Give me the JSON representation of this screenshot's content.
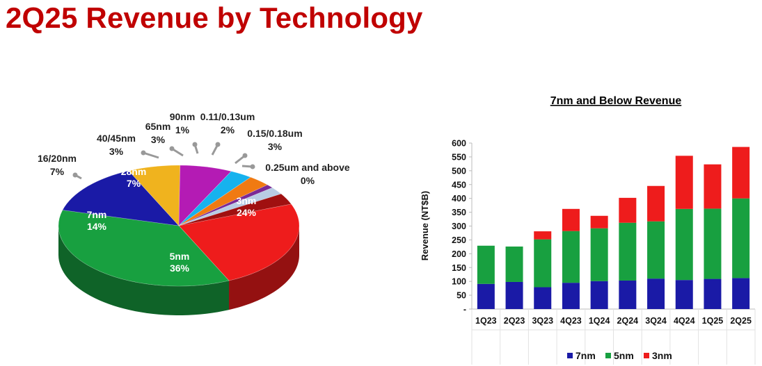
{
  "title": "2Q25 Revenue by Technology",
  "colors": {
    "title": "#c00000",
    "7nm": "#1a1aa6",
    "5nm": "#18a040",
    "3nm": "#ee1c1c"
  },
  "chart_data": [
    {
      "type": "pie",
      "slices": [
        {
          "label": "3nm",
          "value": 24,
          "value_label": "24%",
          "color": "#ee1c1c",
          "label_inside": true
        },
        {
          "label": "5nm",
          "value": 36,
          "value_label": "36%",
          "color": "#18a040",
          "label_inside": true
        },
        {
          "label": "7nm",
          "value": 14,
          "value_label": "14%",
          "color": "#1a1aa6",
          "label_inside": true
        },
        {
          "label": "16/20nm",
          "value": 7,
          "value_label": "7%",
          "color": "#f0b31e",
          "label_inside": false
        },
        {
          "label": "28nm",
          "value": 7,
          "value_label": "7%",
          "color": "#b41bb4",
          "label_inside": true
        },
        {
          "label": "40/45nm",
          "value": 3,
          "value_label": "3%",
          "color": "#16b2ee",
          "label_inside": false
        },
        {
          "label": "65nm",
          "value": 3,
          "value_label": "3%",
          "color": "#f07a12",
          "label_inside": false
        },
        {
          "label": "90nm",
          "value": 1,
          "value_label": "1%",
          "color": "#7a2a96",
          "label_inside": false
        },
        {
          "label": "0.11/0.13um",
          "value": 2,
          "value_label": "2%",
          "color": "#b8cce4",
          "label_inside": false
        },
        {
          "label": "0.15/0.18um",
          "value": 3,
          "value_label": "3%",
          "color": "#a01010",
          "label_inside": false
        },
        {
          "label": "0.25um and above",
          "value": 0,
          "value_label": "0%",
          "color": "#c0c0c0",
          "label_inside": false
        }
      ]
    },
    {
      "type": "bar",
      "stacked": true,
      "title": "7nm and Below Revenue",
      "ylabel": "Revenue (NT$B)",
      "ylim": [
        0,
        600
      ],
      "yticks": [
        "-",
        "50",
        "100",
        "150",
        "200",
        "250",
        "300",
        "350",
        "400",
        "450",
        "500",
        "550",
        "600"
      ],
      "categories": [
        "1Q23",
        "2Q23",
        "3Q23",
        "4Q23",
        "1Q24",
        "2Q24",
        "3Q24",
        "4Q24",
        "1Q25",
        "2Q25"
      ],
      "series": [
        {
          "name": "7nm",
          "color": "#1a1aa6",
          "values": [
            91,
            98,
            79,
            95,
            101,
            103,
            110,
            105,
            109,
            112
          ]
        },
        {
          "name": "5nm",
          "color": "#18a040",
          "values": [
            138,
            128,
            173,
            187,
            191,
            209,
            207,
            257,
            254,
            288
          ]
        },
        {
          "name": "3nm",
          "color": "#ee1c1c",
          "values": [
            0,
            0,
            29,
            80,
            45,
            90,
            128,
            192,
            160,
            186
          ]
        }
      ],
      "legend_position": "bottom"
    }
  ]
}
